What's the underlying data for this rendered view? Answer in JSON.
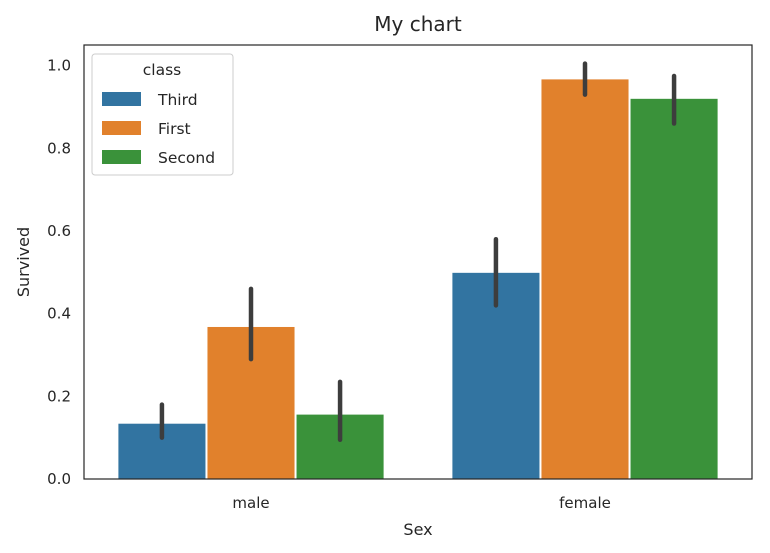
{
  "chart_data": {
    "type": "bar",
    "title": "My chart",
    "xlabel": "Sex",
    "ylabel": "Survived",
    "ylim": [
      0,
      1.05
    ],
    "yticks": [
      "0.0",
      "0.2",
      "0.4",
      "0.6",
      "0.8",
      "1.0"
    ],
    "yticks_values": [
      0,
      0.2,
      0.4,
      0.6,
      0.8,
      1.0
    ],
    "categories": [
      "male",
      "female"
    ],
    "legend": {
      "title": "class",
      "placement": "top-left"
    },
    "series": [
      {
        "name": "Third",
        "color": "#3274a1",
        "values": [
          0.135,
          0.5
        ],
        "ci_low": [
          0.1,
          0.42
        ],
        "ci_high": [
          0.18,
          0.58
        ]
      },
      {
        "name": "First",
        "color": "#e1812c",
        "values": [
          0.369,
          0.968
        ],
        "ci_low": [
          0.29,
          0.93
        ],
        "ci_high": [
          0.46,
          1.005
        ]
      },
      {
        "name": "Second",
        "color": "#3a923a",
        "values": [
          0.157,
          0.921
        ],
        "ci_low": [
          0.095,
          0.86
        ],
        "ci_high": [
          0.235,
          0.975
        ]
      }
    ],
    "errorbar_color": "#3d3d3d"
  }
}
